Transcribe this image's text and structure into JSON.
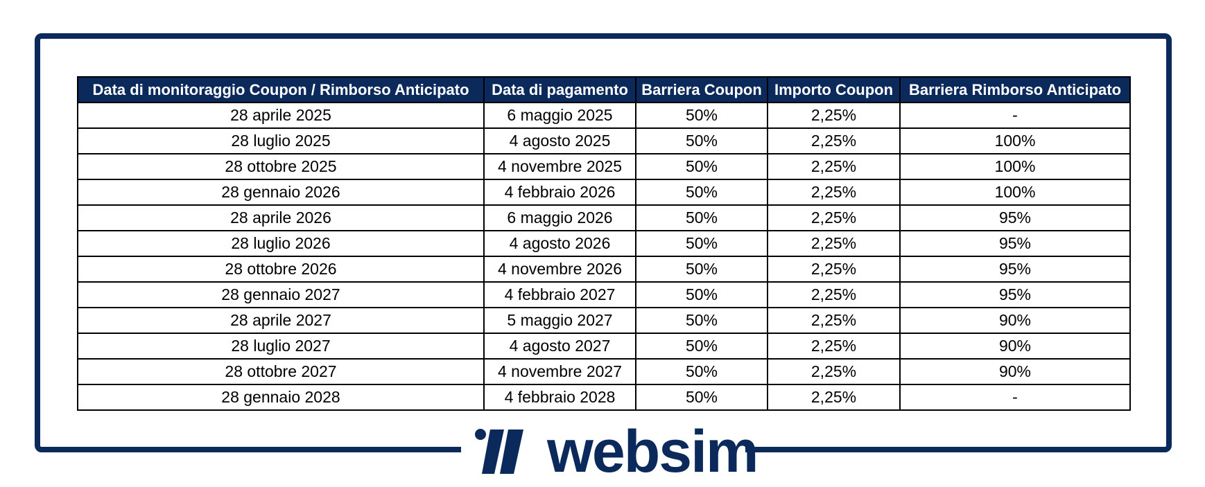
{
  "table": {
    "headers": [
      "Data di monitoraggio Coupon / Rimborso Anticipato",
      "Data di pagamento",
      "Barriera Coupon",
      "Importo Coupon",
      "Barriera Rimborso Anticipato"
    ],
    "rows": [
      [
        "28 aprile 2025",
        "6 maggio 2025",
        "50%",
        "2,25%",
        "-"
      ],
      [
        "28 luglio 2025",
        "4 agosto 2025",
        "50%",
        "2,25%",
        "100%"
      ],
      [
        "28 ottobre 2025",
        "4 novembre 2025",
        "50%",
        "2,25%",
        "100%"
      ],
      [
        "28 gennaio 2026",
        "4 febbraio 2026",
        "50%",
        "2,25%",
        "100%"
      ],
      [
        "28 aprile 2026",
        "6 maggio 2026",
        "50%",
        "2,25%",
        "95%"
      ],
      [
        "28 luglio 2026",
        "4 agosto 2026",
        "50%",
        "2,25%",
        "95%"
      ],
      [
        "28 ottobre 2026",
        "4 novembre 2026",
        "50%",
        "2,25%",
        "95%"
      ],
      [
        "28 gennaio 2027",
        "4 febbraio 2027",
        "50%",
        "2,25%",
        "95%"
      ],
      [
        "28 aprile 2027",
        "5 maggio 2027",
        "50%",
        "2,25%",
        "90%"
      ],
      [
        "28 luglio 2027",
        "4 agosto 2027",
        "50%",
        "2,25%",
        "90%"
      ],
      [
        "28 ottobre 2027",
        "4 novembre 2027",
        "50%",
        "2,25%",
        "90%"
      ],
      [
        "28 gennaio 2028",
        "4 febbraio 2028",
        "50%",
        "2,25%",
        "-"
      ]
    ]
  },
  "logo": {
    "text": "websim",
    "icon": "websim-logo-icon"
  },
  "colors": {
    "brand": "#0b2a5b",
    "header_text": "#ffffff",
    "border": "#000000"
  }
}
